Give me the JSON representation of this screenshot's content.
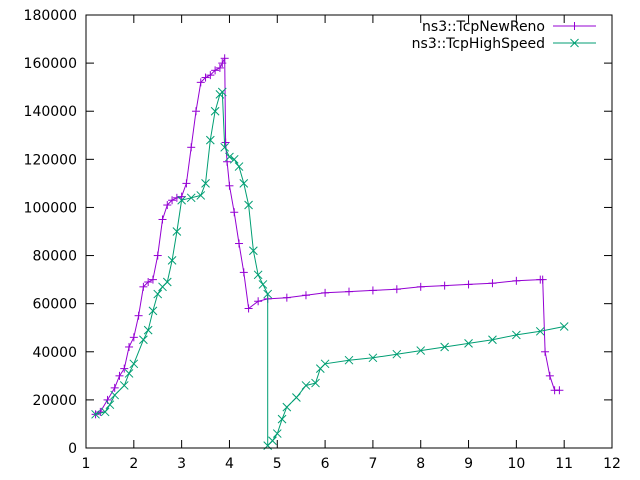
{
  "chart_data": {
    "type": "line",
    "title": "",
    "xlabel": "",
    "ylabel": "",
    "xlim": [
      1,
      12
    ],
    "ylim": [
      0,
      180000
    ],
    "xticks": [
      1,
      2,
      3,
      4,
      5,
      6,
      7,
      8,
      9,
      10,
      11,
      12
    ],
    "yticks": [
      0,
      20000,
      40000,
      60000,
      80000,
      100000,
      120000,
      140000,
      160000,
      180000
    ],
    "grid": false,
    "legend_position": "top-right",
    "series": [
      {
        "name": "ns3::TcpNewReno",
        "color": "#9400d3",
        "marker": "plus",
        "x": [
          1.2,
          1.3,
          1.45,
          1.6,
          1.7,
          1.8,
          1.9,
          2.0,
          2.1,
          2.2,
          2.3,
          2.4,
          2.5,
          2.6,
          2.7,
          2.8,
          2.9,
          3.0,
          3.1,
          3.2,
          3.3,
          3.4,
          3.5,
          3.6,
          3.7,
          3.8,
          3.85,
          3.9,
          3.92,
          3.95,
          4.0,
          4.1,
          4.2,
          4.3,
          4.4,
          4.6,
          4.8,
          5.2,
          5.6,
          6.0,
          6.5,
          7.0,
          7.5,
          8.0,
          8.5,
          9.0,
          9.5,
          10.0,
          10.5,
          10.55,
          10.6,
          10.7,
          10.8,
          10.9
        ],
        "y": [
          14000,
          15000,
          20000,
          25000,
          30000,
          33000,
          42000,
          46000,
          55000,
          67000,
          69000,
          70000,
          80000,
          95000,
          101000,
          103000,
          104000,
          104500,
          110000,
          125000,
          140000,
          152000,
          154000,
          155000,
          157000,
          158000,
          160000,
          162000,
          127000,
          119000,
          109000,
          98000,
          85000,
          73000,
          58000,
          61000,
          62000,
          62500,
          63500,
          64500,
          65000,
          65500,
          66000,
          67000,
          67500,
          68000,
          68500,
          69500,
          70000,
          70000,
          40000,
          30000,
          24000,
          24000
        ]
      },
      {
        "name": "ns3::TcpHighSpeed",
        "color": "#009e73",
        "marker": "cross",
        "x": [
          1.2,
          1.4,
          1.5,
          1.6,
          1.8,
          1.9,
          2.0,
          2.2,
          2.3,
          2.4,
          2.5,
          2.6,
          2.7,
          2.8,
          2.9,
          3.0,
          3.2,
          3.4,
          3.5,
          3.6,
          3.7,
          3.8,
          3.85,
          3.9,
          4.0,
          4.1,
          4.2,
          4.3,
          4.4,
          4.5,
          4.6,
          4.7,
          4.8,
          4.8,
          4.9,
          5.0,
          5.1,
          5.2,
          5.4,
          5.6,
          5.8,
          5.9,
          6.0,
          6.5,
          7.0,
          7.5,
          8.0,
          8.5,
          9.0,
          9.5,
          10.0,
          10.5,
          11.0
        ],
        "y": [
          14000,
          15000,
          18000,
          22000,
          26000,
          31000,
          35000,
          45000,
          49000,
          57000,
          64000,
          67000,
          69000,
          78000,
          90000,
          103000,
          104000,
          105000,
          110000,
          128000,
          140000,
          147000,
          148000,
          125000,
          121000,
          120000,
          117000,
          110000,
          101000,
          82000,
          72000,
          68000,
          64000,
          1000,
          3000,
          6000,
          12000,
          17000,
          21000,
          26000,
          27000,
          33000,
          35000,
          36500,
          37500,
          39000,
          40500,
          42000,
          43500,
          45000,
          47000,
          48500,
          50500
        ]
      }
    ]
  }
}
